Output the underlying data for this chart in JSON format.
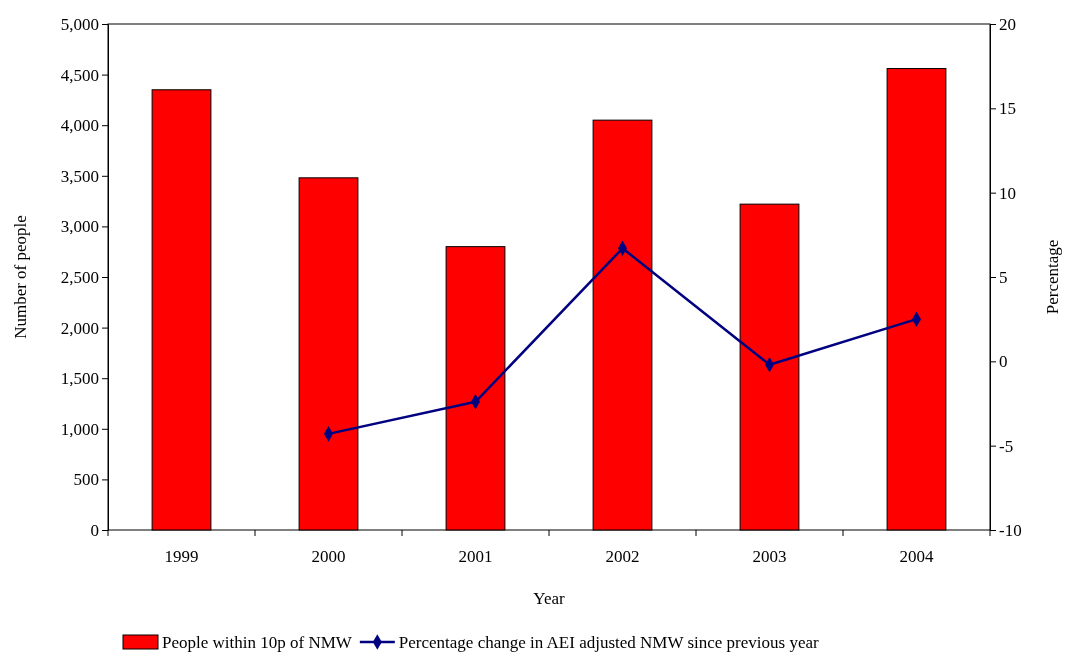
{
  "chart_data": {
    "type": "bar",
    "xlabel": "Year",
    "ylabel": "Number of people",
    "y2label": "Percentage",
    "categories": [
      "1999",
      "2000",
      "2001",
      "2002",
      "2003",
      "2004"
    ],
    "series": [
      {
        "name": "People within 10p of NMW",
        "color": "#ff0000",
        "values": [
          4350,
          3480,
          2800,
          4050,
          3220,
          4560
        ]
      },
      {
        "name": "Percentage change in AEI adjusted NMW since previous year",
        "type": "line",
        "axis": "y2",
        "color": "#000080",
        "marker": "diamond",
        "values": [
          null,
          -4.3,
          -2.4,
          6.7,
          -0.2,
          2.5
        ]
      }
    ],
    "ylim": [
      0,
      5000
    ],
    "yticks": [
      {
        "value": 0,
        "label": "0"
      },
      {
        "value": 500,
        "label": "500"
      },
      {
        "value": 1000,
        "label": "1,000"
      },
      {
        "value": 1500,
        "label": "1,500"
      },
      {
        "value": 2000,
        "label": "2,000"
      },
      {
        "value": 2500,
        "label": "2,500"
      },
      {
        "value": 3000,
        "label": "3,000"
      },
      {
        "value": 3500,
        "label": "3,500"
      },
      {
        "value": 4000,
        "label": "4,000"
      },
      {
        "value": 4500,
        "label": "4,500"
      },
      {
        "value": 5000,
        "label": "5,000"
      }
    ],
    "y2lim": [
      -10,
      20
    ],
    "y2ticks": [
      -10,
      -5,
      0,
      5,
      10,
      15,
      20
    ],
    "legend": "bottom",
    "grid": false
  }
}
